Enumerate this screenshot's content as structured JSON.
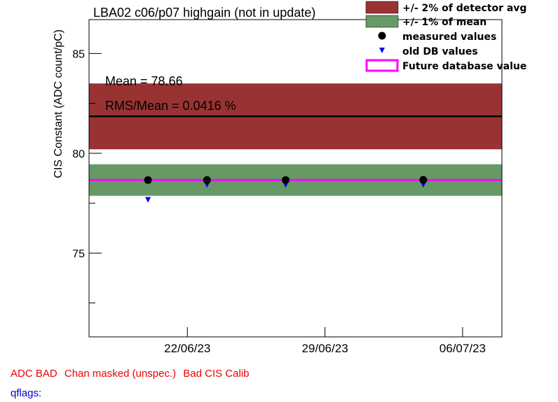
{
  "chart_data": {
    "type": "scatter",
    "title": "LBA02 c06/p07 highgain (not in update)",
    "xlabel": "",
    "ylabel": "CIS Constant (ADC count/pC)",
    "ylim": [
      70.8,
      86.7
    ],
    "xlim": [
      "2023-06-17",
      "2023-07-08"
    ],
    "y_ticks": [
      "75",
      "80",
      "85"
    ],
    "x_ticks": [
      "22/06/23",
      "29/06/23",
      "06/07/23"
    ],
    "series": [
      {
        "name": "measured values",
        "marker": "circle",
        "color": "#000000",
        "x": [
          "2023-06-20",
          "2023-06-23",
          "2023-06-27",
          "2023-07-04"
        ],
        "values": [
          78.66,
          78.66,
          78.66,
          78.67
        ]
      },
      {
        "name": "old DB values",
        "marker": "triangle-down",
        "color": "#0000ee",
        "x": [
          "2023-06-20",
          "2023-06-23",
          "2023-06-27",
          "2023-07-04"
        ],
        "values": [
          77.7,
          78.45,
          78.45,
          78.45
        ]
      }
    ],
    "bands": [
      {
        "name": "+/- 2% of detector avg",
        "color": "#993333",
        "center": 81.85,
        "low": 80.2,
        "high": 83.5
      },
      {
        "name": "+/- 1% of mean",
        "color": "#669966",
        "center": 78.66,
        "low": 77.87,
        "high": 79.45
      }
    ],
    "lines": [
      {
        "name": "detector avg",
        "color": "#000000",
        "value": 81.85
      },
      {
        "name": "Future database value",
        "color": "#ff00ff",
        "value": 78.66
      }
    ],
    "annotations": [
      "Mean = 78.66",
      "RMS/Mean = 0.0416 %"
    ],
    "legend": {
      "position": "top-right",
      "items": [
        {
          "label": "+/- 2% of detector avg",
          "kind": "box",
          "color": "#993333"
        },
        {
          "label": "+/- 1% of mean",
          "kind": "box",
          "color": "#669966"
        },
        {
          "label": "measured values",
          "kind": "circle",
          "color": "#000000"
        },
        {
          "label": "old DB values",
          "kind": "triangle-down",
          "color": "#0000ee"
        },
        {
          "label": "Future database value",
          "kind": "outline",
          "color": "#ff00ff"
        }
      ]
    }
  },
  "footer": {
    "flags": [
      "ADC BAD",
      "Chan masked (unspec.)",
      "Bad CIS Calib"
    ],
    "qflags_label": "qflags:",
    "flag_color": "#ee0000",
    "qflags_color": "#0000cc"
  }
}
